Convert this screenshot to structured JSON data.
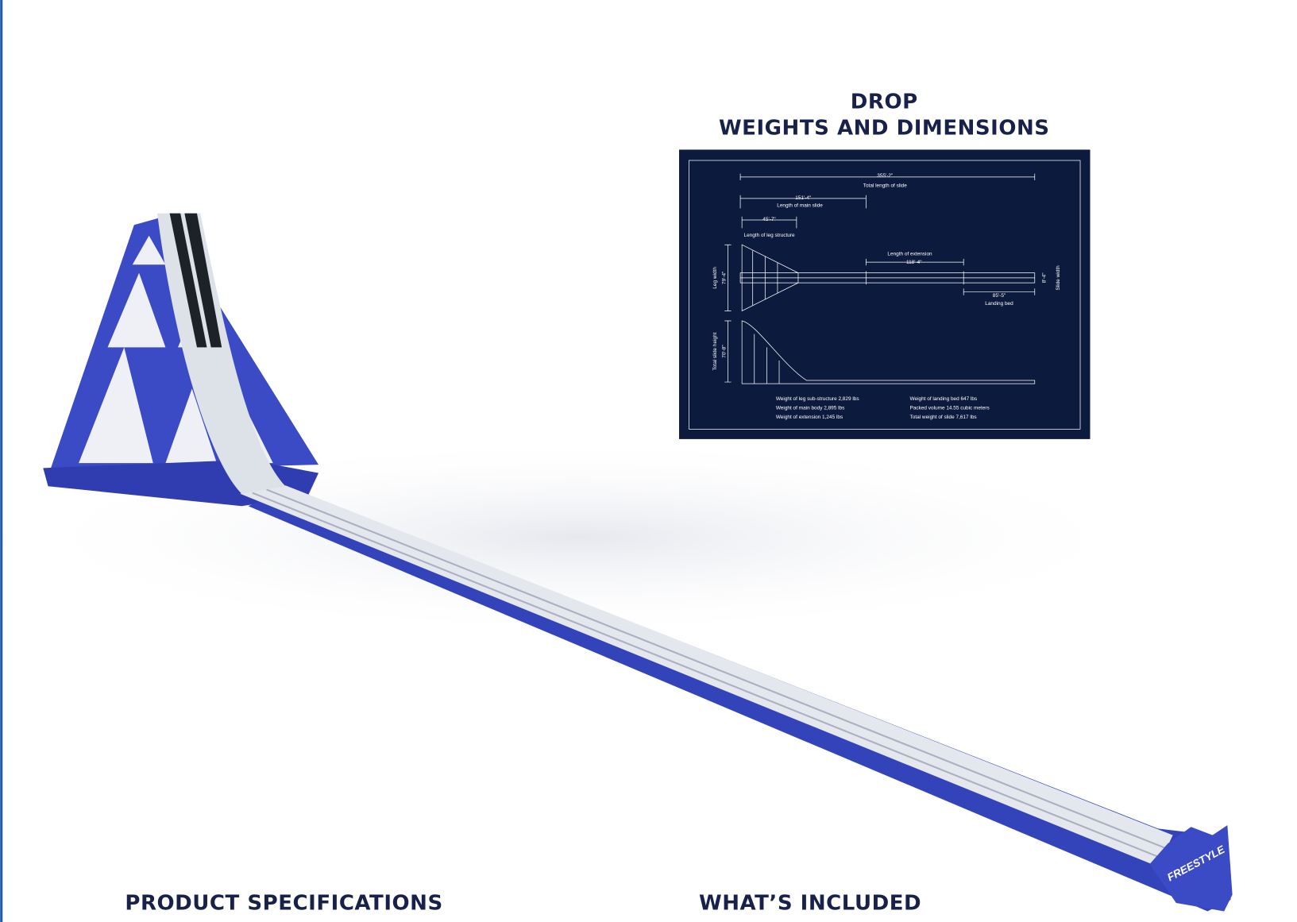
{
  "header": {
    "title_line1": "DROP",
    "title_line2": "WEIGHTS AND DIMENSIONS"
  },
  "blueprint": {
    "total_length": "355'-2\"",
    "total_length_label": "Total length of slide",
    "main_slide": "151'-4\"",
    "main_slide_label": "Length of main slide",
    "leg_structure": "45'-7\"",
    "leg_structure_label": "Length of leg structure",
    "extension_label": "Length of extension",
    "extension": "118'-4\"",
    "leg_width_label": "Leg width",
    "leg_width": "79'-4\"",
    "slide_width_label": "Slide width",
    "slide_width": "8'-4\"",
    "landing_bed": "85'-5\"",
    "landing_bed_label": "Landing bed",
    "slide_height_label": "Total slide height",
    "slide_height": "70'-8\"",
    "weights_left": [
      "Weight of leg sub-structure 2,829 lbs",
      "Weight of main body 2,895 lbs",
      "Weight of extension 1,245 lbs"
    ],
    "weights_right": [
      "Weight of landing bed 647 lbs",
      "Packed volume 14.55 cubic meters",
      "Total weight of slide 7,617 lbs"
    ]
  },
  "product": {
    "logo": "FREESTYLE"
  },
  "sections": {
    "specifications": "PRODUCT SPECIFICATIONS",
    "included": "WHAT’S INCLUDED"
  }
}
